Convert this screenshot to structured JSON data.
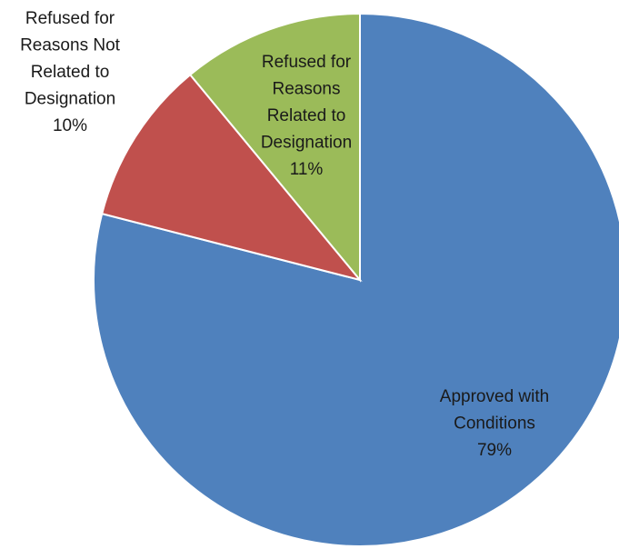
{
  "chart_data": {
    "type": "pie",
    "categories": [
      "Approved with\nConditions",
      "Refused for\nReasons Not\nRelated to\nDesignation",
      "Refused for\nReasons\nRelated to\nDesignation"
    ],
    "values": [
      79,
      10,
      11
    ],
    "value_labels": [
      "79%",
      "10%",
      "11%"
    ],
    "colors": [
      "#4f81bd",
      "#c0504d",
      "#9bbb59"
    ]
  }
}
